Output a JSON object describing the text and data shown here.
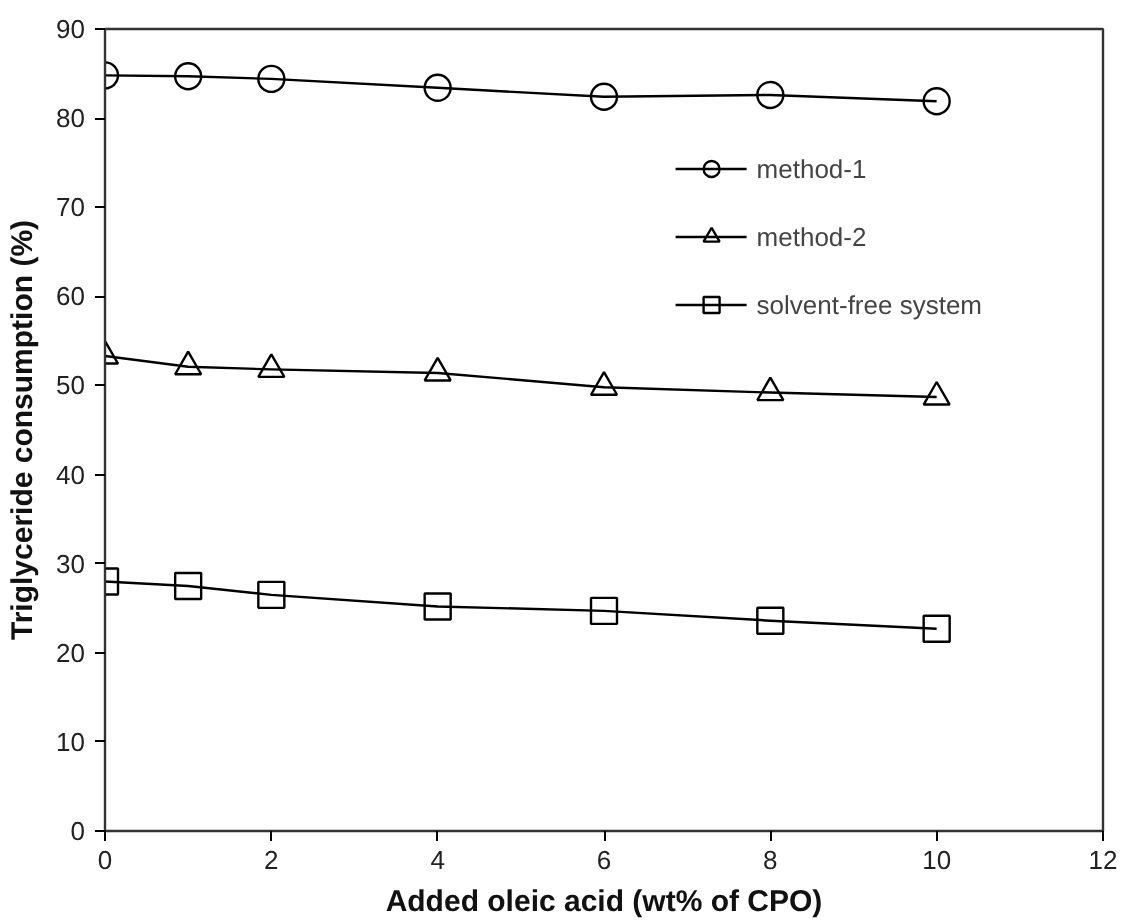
{
  "chart_data": {
    "type": "line",
    "xlabel": "Added oleic acid (wt% of CPO)",
    "ylabel": "Triglyceride consumption (%)",
    "x": [
      0,
      1,
      2,
      4,
      6,
      8,
      10
    ],
    "xlim": [
      0,
      12
    ],
    "xticks": [
      0,
      2,
      4,
      6,
      8,
      10,
      12
    ],
    "ylim": [
      0,
      90
    ],
    "yticks": [
      0,
      10,
      20,
      30,
      40,
      50,
      60,
      70,
      80,
      90
    ],
    "grid": false,
    "legend": "top right",
    "line_style": "solid",
    "series": [
      {
        "name": "method-1",
        "color": "#000000",
        "marker": "circle",
        "values": [
          84.8,
          84.7,
          84.4,
          83.4,
          82.4,
          82.6,
          81.9
        ]
      },
      {
        "name": "method-2",
        "color": "#000000",
        "marker": "triangle",
        "values": [
          53.3,
          52.1,
          51.8,
          51.4,
          49.8,
          49.2,
          48.7
        ]
      },
      {
        "name": "solvent-free system",
        "color": "#000000",
        "marker": "square",
        "values": [
          28.0,
          27.5,
          26.5,
          25.2,
          24.7,
          23.6,
          22.7
        ]
      }
    ]
  }
}
